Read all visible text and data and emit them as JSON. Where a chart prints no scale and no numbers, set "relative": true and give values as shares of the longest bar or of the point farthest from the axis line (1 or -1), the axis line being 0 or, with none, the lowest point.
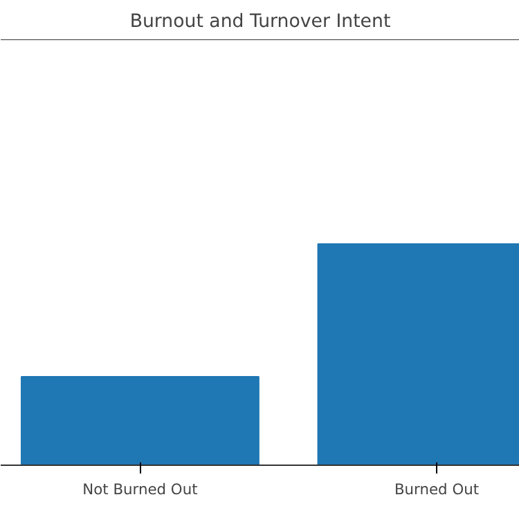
{
  "chart_data": {
    "type": "bar",
    "title": "Burnout and Turnover Intent",
    "relative": true,
    "categories": [
      "Not Burned Out",
      "Burned Out"
    ],
    "values": [
      0.4,
      1.0
    ],
    "color": "#1f77b4",
    "grid": false
  }
}
